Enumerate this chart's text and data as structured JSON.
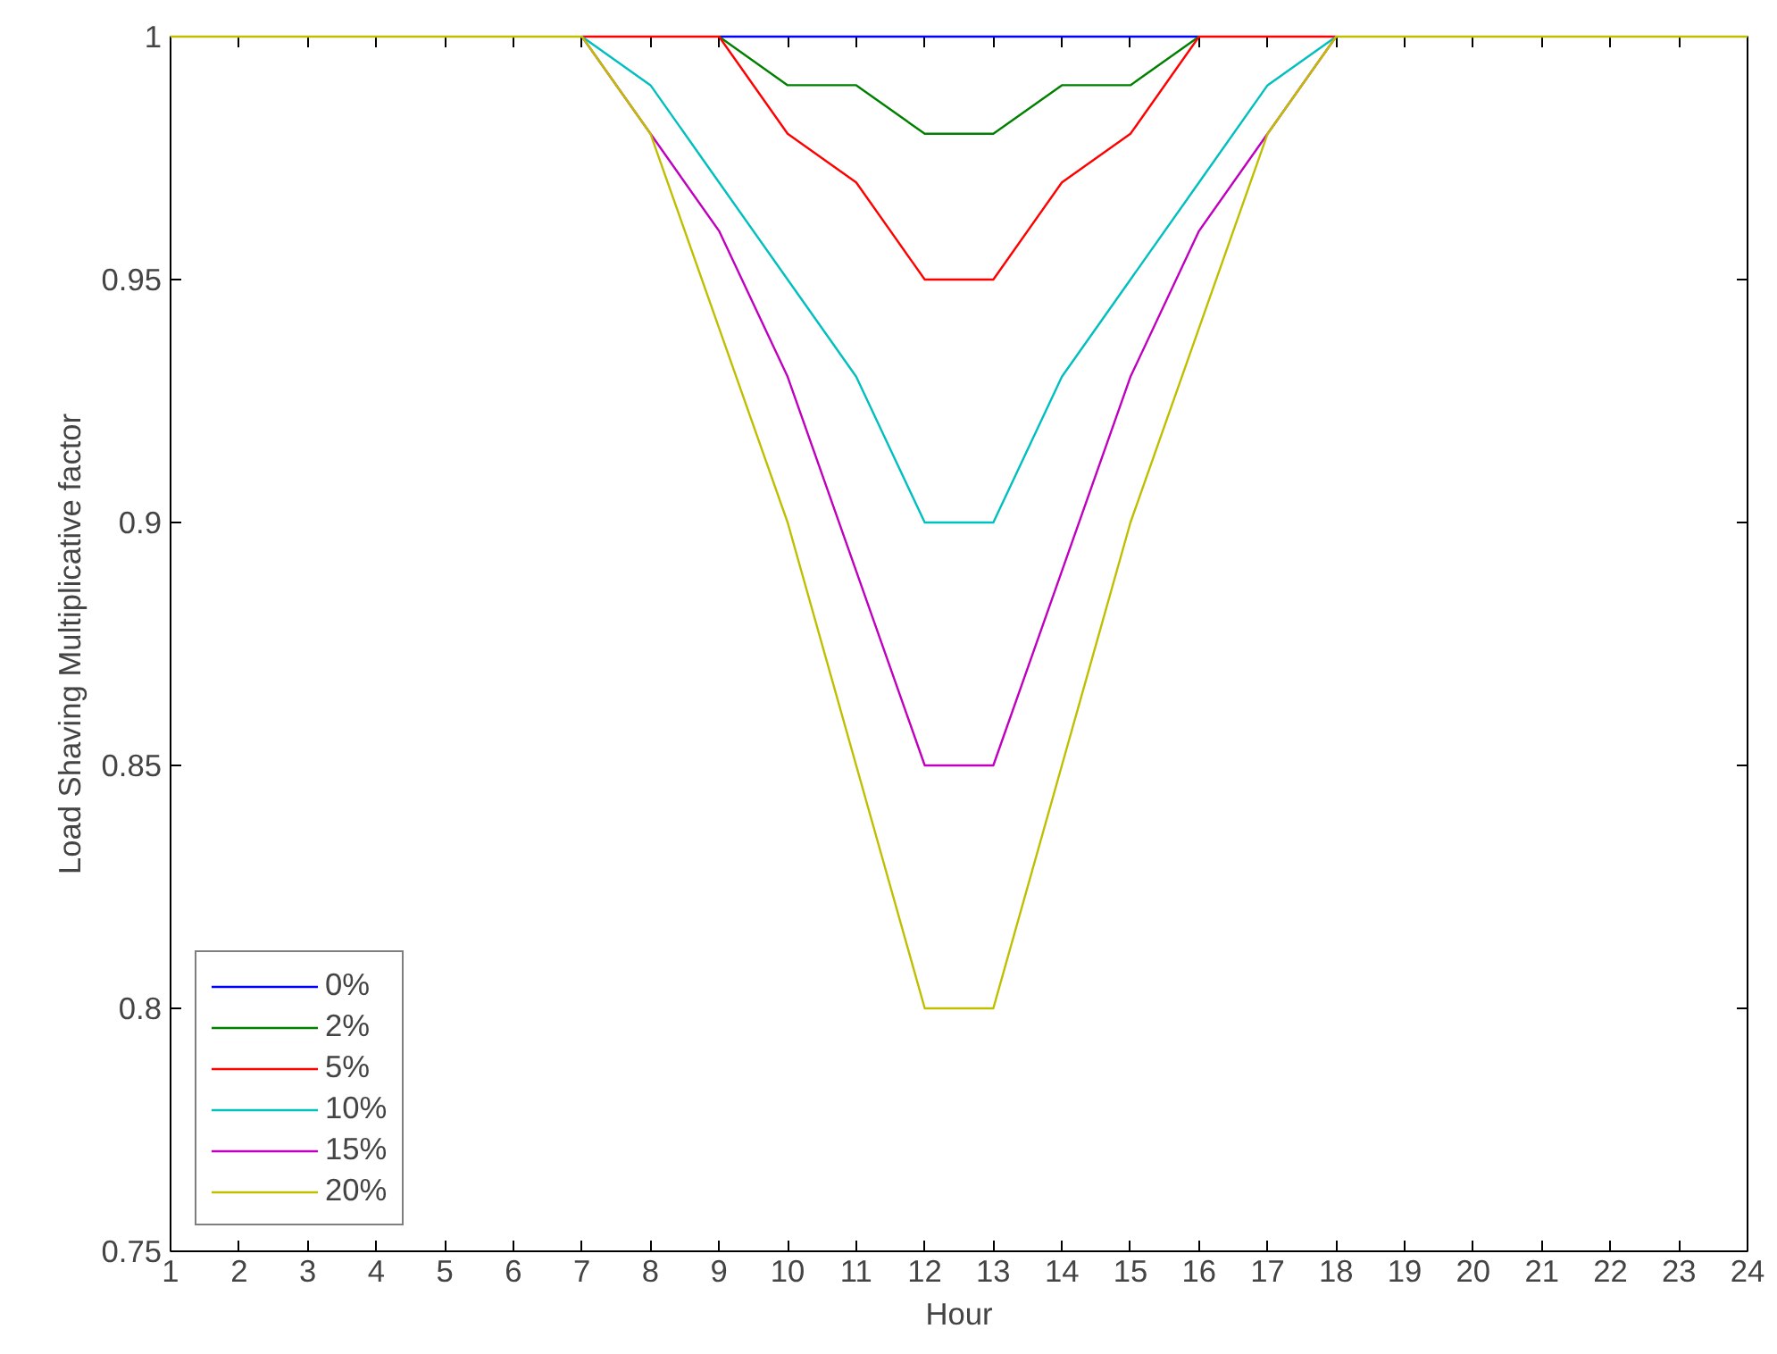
{
  "chart_data": {
    "type": "line",
    "xlabel": "Hour",
    "ylabel": "Load Shaving Multiplicative factor",
    "x": [
      1,
      2,
      3,
      4,
      5,
      6,
      7,
      8,
      9,
      10,
      11,
      12,
      13,
      14,
      15,
      16,
      17,
      18,
      19,
      20,
      21,
      22,
      23,
      24
    ],
    "series": [
      {
        "name": "0%",
        "color": "#0000ff",
        "values": [
          null,
          null,
          null,
          null,
          null,
          null,
          null,
          null,
          1,
          1,
          1,
          1,
          1,
          1,
          1,
          1,
          null,
          null,
          null,
          null,
          null,
          null,
          null,
          null
        ]
      },
      {
        "name": "2%",
        "color": "#008000",
        "values": [
          null,
          null,
          null,
          null,
          null,
          null,
          null,
          null,
          1,
          0.99,
          0.99,
          0.98,
          0.98,
          0.99,
          0.99,
          1,
          null,
          null,
          null,
          null,
          null,
          null,
          null,
          null
        ]
      },
      {
        "name": "5%",
        "color": "#ff0000",
        "values": [
          null,
          null,
          null,
          null,
          null,
          null,
          1,
          1,
          1,
          0.98,
          0.97,
          0.95,
          0.95,
          0.97,
          0.98,
          1,
          1,
          1,
          null,
          null,
          null,
          null,
          null,
          null
        ]
      },
      {
        "name": "10%",
        "color": "#00bfbf",
        "values": [
          null,
          null,
          null,
          null,
          null,
          null,
          1,
          0.99,
          0.97,
          0.95,
          0.93,
          0.9,
          0.9,
          0.93,
          0.95,
          0.97,
          0.99,
          1,
          null,
          null,
          null,
          null,
          null,
          null
        ]
      },
      {
        "name": "15%",
        "color": "#bf00bf",
        "values": [
          null,
          null,
          null,
          null,
          null,
          null,
          1,
          0.98,
          0.96,
          0.93,
          0.89,
          0.85,
          0.85,
          0.89,
          0.93,
          0.96,
          0.98,
          1,
          null,
          null,
          null,
          null,
          null,
          null
        ]
      },
      {
        "name": "20%",
        "color": "#bfbf00",
        "values": [
          1,
          1,
          1,
          1,
          1,
          1,
          1,
          0.98,
          0.94,
          0.9,
          0.85,
          0.8,
          0.8,
          0.85,
          0.9,
          0.94,
          0.98,
          1,
          1,
          1,
          1,
          1,
          1,
          1
        ]
      }
    ],
    "xlim": [
      1,
      24
    ],
    "xticks": [
      1,
      2,
      3,
      4,
      5,
      6,
      7,
      8,
      9,
      10,
      11,
      12,
      13,
      14,
      15,
      16,
      17,
      18,
      19,
      20,
      21,
      22,
      23,
      24
    ],
    "ylim": [
      0.75,
      1
    ],
    "yticks": [
      0.75,
      0.8,
      0.85,
      0.9,
      0.95,
      1
    ],
    "grid": false,
    "legend": "bottom left",
    "marker": "none",
    "line_style": "solid"
  }
}
